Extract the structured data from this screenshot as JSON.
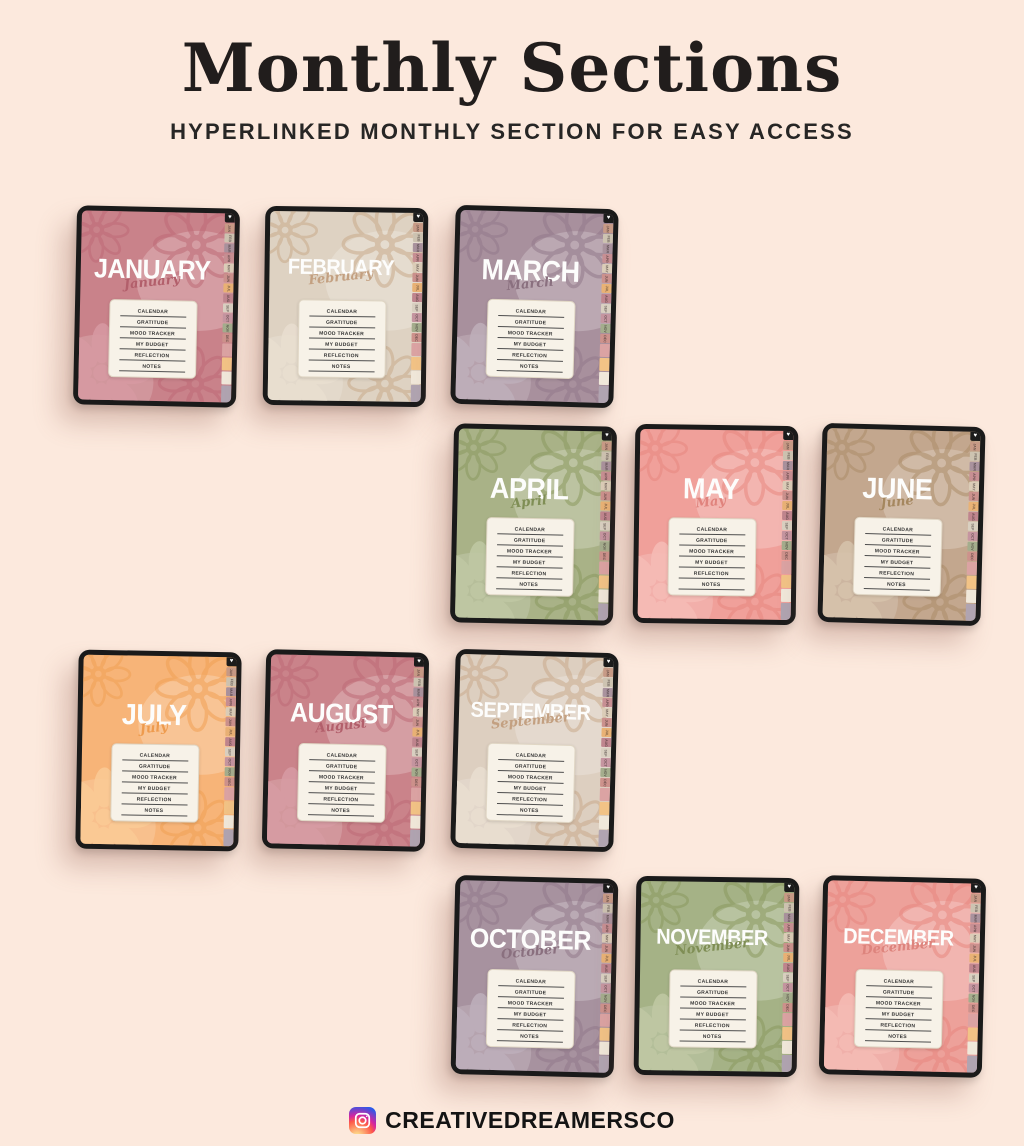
{
  "page": {
    "background": "#fce9dd"
  },
  "header": {
    "title": "Monthly Sections",
    "subtitle": "HYPERLINKED MONTHLY SECTION FOR EASY ACCESS"
  },
  "section_links": [
    "CALENDAR",
    "GRATITUDE",
    "MOOD TRACKER",
    "MY BUDGET",
    "REFLECTION",
    "NOTES"
  ],
  "side_tabs": {
    "heart_glyph": "♥",
    "months": [
      "JAN",
      "FEB",
      "MAR",
      "APR",
      "MAY",
      "JUN",
      "JUL",
      "AUG",
      "SEP",
      "OCT",
      "NOV",
      "DEC"
    ],
    "month_colors": [
      "#c79a86",
      "#cdc3b1",
      "#a9929d",
      "#c78f93",
      "#dbcdb8",
      "#cb918d",
      "#e9b275",
      "#bf858e",
      "#d9d0c1",
      "#c595a0",
      "#a4ad8d",
      "#cd928c"
    ],
    "extra_colors": [
      "#dba3a3",
      "#f2c386",
      "#f0e8da",
      "#b0a4b1"
    ]
  },
  "months": [
    {
      "label": "JANUARY",
      "script": "January",
      "cover": "#c9828a",
      "script_color": "#b25f6b",
      "flower_outline": "#bd6b77",
      "flower_fill": "#d79ba3"
    },
    {
      "label": "FEBRUARY",
      "script": "February",
      "cover": "#ded2c2",
      "script_color": "#c3a081",
      "flower_outline": "#c9aa8a",
      "flower_fill": "#e9dfd0"
    },
    {
      "label": "MARCH",
      "script": "March",
      "cover": "#a8909d",
      "script_color": "#8a707f",
      "flower_outline": "#93798a",
      "flower_fill": "#bfafba"
    },
    {
      "label": "APRIL",
      "script": "April",
      "cover": "#a9b287",
      "script_color": "#7f8e55",
      "flower_outline": "#8a9a60",
      "flower_fill": "#c0c8a4"
    },
    {
      "label": "MAY",
      "script": "May",
      "cover": "#f0a09a",
      "script_color": "#e0837d",
      "flower_outline": "#e78880",
      "flower_fill": "#f6bdb7"
    },
    {
      "label": "JUNE",
      "script": "June",
      "cover": "#c3a78e",
      "script_color": "#a5875f",
      "flower_outline": "#ab8d68",
      "flower_fill": "#d6c3ac"
    },
    {
      "label": "JULY",
      "script": "July",
      "cover": "#f7b478",
      "script_color": "#ee9b4e",
      "flower_outline": "#f0a055",
      "flower_fill": "#fbca96"
    },
    {
      "label": "AUGUST",
      "script": "August",
      "cover": "#ca838a",
      "script_color": "#b25f6b",
      "flower_outline": "#bd6b77",
      "flower_fill": "#d89ca4"
    },
    {
      "label": "SEPTEMBER",
      "script": "September",
      "cover": "#ddcfc0",
      "script_color": "#c3a081",
      "flower_outline": "#c9aa8a",
      "flower_fill": "#e9dfd0"
    },
    {
      "label": "OCTOBER",
      "script": "October",
      "cover": "#a7929f",
      "script_color": "#8a707f",
      "flower_outline": "#93798a",
      "flower_fill": "#beafbb"
    },
    {
      "label": "NOVEMBER",
      "script": "November",
      "cover": "#a5b286",
      "script_color": "#7f8e55",
      "flower_outline": "#8a9a60",
      "flower_fill": "#c0c8a4"
    },
    {
      "label": "DECEMBER",
      "script": "December",
      "cover": "#eda19a",
      "script_color": "#dd847d",
      "flower_outline": "#e78880",
      "flower_fill": "#f5bdb6"
    }
  ],
  "footer": {
    "handle": "CREATIVEDREAMERSCO",
    "icon": "instagram-icon"
  }
}
